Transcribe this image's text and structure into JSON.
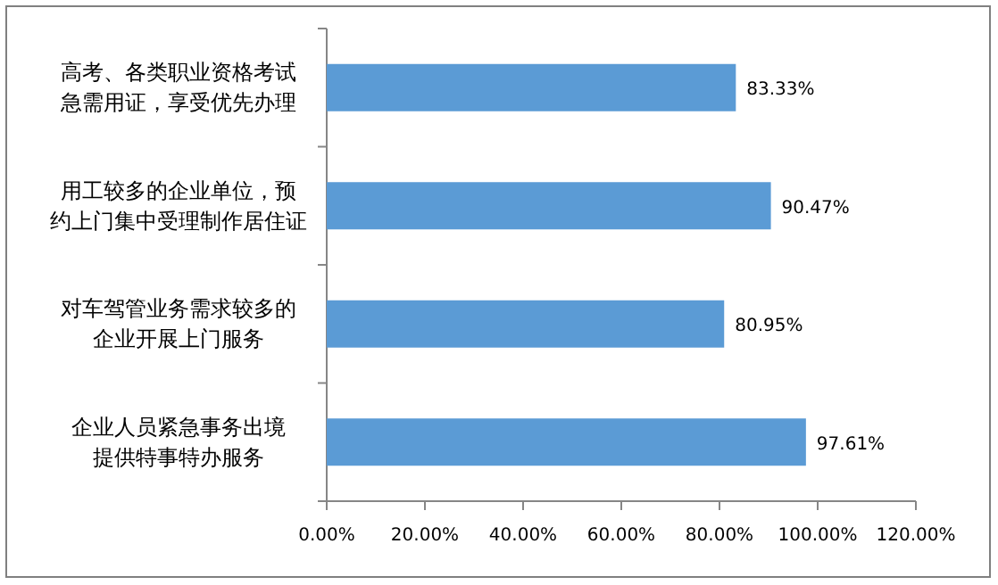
{
  "chart_data": {
    "type": "bar",
    "orientation": "horizontal",
    "categories": [
      "高考、各类职业资格考试急需用证，享受优先办理",
      "用工较多的企业单位，预约上门集中受理制作居住证",
      "对车驾管业务需求较多的企业开展上门服务",
      "企业人员紧急事务出境提供特事特办服务"
    ],
    "values": [
      83.33,
      90.47,
      80.95,
      97.61
    ],
    "value_labels": [
      "83.33%",
      "90.47%",
      "80.95%",
      "97.61%"
    ],
    "color": "#5b9bd5",
    "xlim": [
      0,
      120
    ],
    "xticks": [
      {
        "value": 0,
        "label": "0.00%"
      },
      {
        "value": 20,
        "label": "20.00%"
      },
      {
        "value": 40,
        "label": "40.00%"
      },
      {
        "value": 60,
        "label": "60.00%"
      },
      {
        "value": 80,
        "label": "80.00%"
      },
      {
        "value": 100,
        "label": "100.00%"
      },
      {
        "value": 120,
        "label": "120.00%"
      }
    ],
    "grid": false
  }
}
